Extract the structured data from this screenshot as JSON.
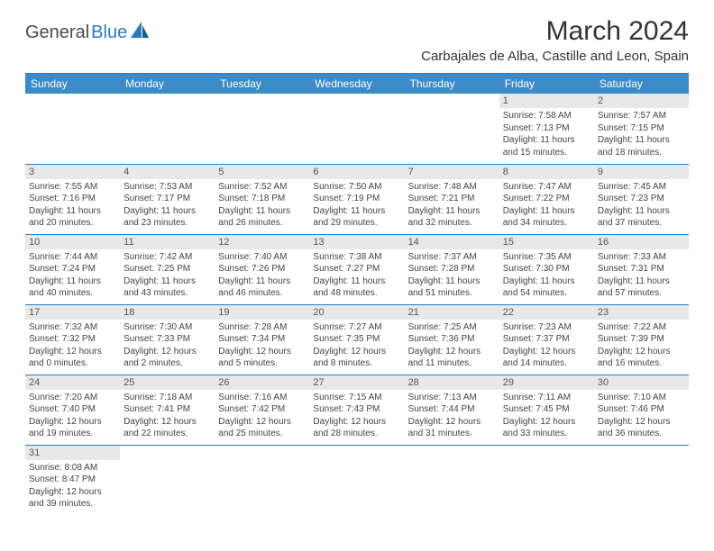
{
  "brand": {
    "general": "General",
    "blue": "Blue"
  },
  "title": "March 2024",
  "location": "Carbajales de Alba, Castille and Leon, Spain",
  "colors": {
    "header_bg": "#3b8bc9",
    "header_text": "#ffffff",
    "divider": "#2b7bbf",
    "daynum_bg": "#e8e8e8",
    "text": "#444444",
    "logo_gray": "#4a4a4a",
    "logo_blue": "#2b7bbf"
  },
  "columns": [
    "Sunday",
    "Monday",
    "Tuesday",
    "Wednesday",
    "Thursday",
    "Friday",
    "Saturday"
  ],
  "weeks": [
    [
      {
        "n": "",
        "lines": []
      },
      {
        "n": "",
        "lines": []
      },
      {
        "n": "",
        "lines": []
      },
      {
        "n": "",
        "lines": []
      },
      {
        "n": "",
        "lines": []
      },
      {
        "n": "1",
        "lines": [
          "Sunrise: 7:58 AM",
          "Sunset: 7:13 PM",
          "Daylight: 11 hours and 15 minutes."
        ]
      },
      {
        "n": "2",
        "lines": [
          "Sunrise: 7:57 AM",
          "Sunset: 7:15 PM",
          "Daylight: 11 hours and 18 minutes."
        ]
      }
    ],
    [
      {
        "n": "3",
        "lines": [
          "Sunrise: 7:55 AM",
          "Sunset: 7:16 PM",
          "Daylight: 11 hours and 20 minutes."
        ]
      },
      {
        "n": "4",
        "lines": [
          "Sunrise: 7:53 AM",
          "Sunset: 7:17 PM",
          "Daylight: 11 hours and 23 minutes."
        ]
      },
      {
        "n": "5",
        "lines": [
          "Sunrise: 7:52 AM",
          "Sunset: 7:18 PM",
          "Daylight: 11 hours and 26 minutes."
        ]
      },
      {
        "n": "6",
        "lines": [
          "Sunrise: 7:50 AM",
          "Sunset: 7:19 PM",
          "Daylight: 11 hours and 29 minutes."
        ]
      },
      {
        "n": "7",
        "lines": [
          "Sunrise: 7:48 AM",
          "Sunset: 7:21 PM",
          "Daylight: 11 hours and 32 minutes."
        ]
      },
      {
        "n": "8",
        "lines": [
          "Sunrise: 7:47 AM",
          "Sunset: 7:22 PM",
          "Daylight: 11 hours and 34 minutes."
        ]
      },
      {
        "n": "9",
        "lines": [
          "Sunrise: 7:45 AM",
          "Sunset: 7:23 PM",
          "Daylight: 11 hours and 37 minutes."
        ]
      }
    ],
    [
      {
        "n": "10",
        "lines": [
          "Sunrise: 7:44 AM",
          "Sunset: 7:24 PM",
          "Daylight: 11 hours and 40 minutes."
        ]
      },
      {
        "n": "11",
        "lines": [
          "Sunrise: 7:42 AM",
          "Sunset: 7:25 PM",
          "Daylight: 11 hours and 43 minutes."
        ]
      },
      {
        "n": "12",
        "lines": [
          "Sunrise: 7:40 AM",
          "Sunset: 7:26 PM",
          "Daylight: 11 hours and 46 minutes."
        ]
      },
      {
        "n": "13",
        "lines": [
          "Sunrise: 7:38 AM",
          "Sunset: 7:27 PM",
          "Daylight: 11 hours and 48 minutes."
        ]
      },
      {
        "n": "14",
        "lines": [
          "Sunrise: 7:37 AM",
          "Sunset: 7:28 PM",
          "Daylight: 11 hours and 51 minutes."
        ]
      },
      {
        "n": "15",
        "lines": [
          "Sunrise: 7:35 AM",
          "Sunset: 7:30 PM",
          "Daylight: 11 hours and 54 minutes."
        ]
      },
      {
        "n": "16",
        "lines": [
          "Sunrise: 7:33 AM",
          "Sunset: 7:31 PM",
          "Daylight: 11 hours and 57 minutes."
        ]
      }
    ],
    [
      {
        "n": "17",
        "lines": [
          "Sunrise: 7:32 AM",
          "Sunset: 7:32 PM",
          "Daylight: 12 hours and 0 minutes."
        ]
      },
      {
        "n": "18",
        "lines": [
          "Sunrise: 7:30 AM",
          "Sunset: 7:33 PM",
          "Daylight: 12 hours and 2 minutes."
        ]
      },
      {
        "n": "19",
        "lines": [
          "Sunrise: 7:28 AM",
          "Sunset: 7:34 PM",
          "Daylight: 12 hours and 5 minutes."
        ]
      },
      {
        "n": "20",
        "lines": [
          "Sunrise: 7:27 AM",
          "Sunset: 7:35 PM",
          "Daylight: 12 hours and 8 minutes."
        ]
      },
      {
        "n": "21",
        "lines": [
          "Sunrise: 7:25 AM",
          "Sunset: 7:36 PM",
          "Daylight: 12 hours and 11 minutes."
        ]
      },
      {
        "n": "22",
        "lines": [
          "Sunrise: 7:23 AM",
          "Sunset: 7:37 PM",
          "Daylight: 12 hours and 14 minutes."
        ]
      },
      {
        "n": "23",
        "lines": [
          "Sunrise: 7:22 AM",
          "Sunset: 7:39 PM",
          "Daylight: 12 hours and 16 minutes."
        ]
      }
    ],
    [
      {
        "n": "24",
        "lines": [
          "Sunrise: 7:20 AM",
          "Sunset: 7:40 PM",
          "Daylight: 12 hours and 19 minutes."
        ]
      },
      {
        "n": "25",
        "lines": [
          "Sunrise: 7:18 AM",
          "Sunset: 7:41 PM",
          "Daylight: 12 hours and 22 minutes."
        ]
      },
      {
        "n": "26",
        "lines": [
          "Sunrise: 7:16 AM",
          "Sunset: 7:42 PM",
          "Daylight: 12 hours and 25 minutes."
        ]
      },
      {
        "n": "27",
        "lines": [
          "Sunrise: 7:15 AM",
          "Sunset: 7:43 PM",
          "Daylight: 12 hours and 28 minutes."
        ]
      },
      {
        "n": "28",
        "lines": [
          "Sunrise: 7:13 AM",
          "Sunset: 7:44 PM",
          "Daylight: 12 hours and 31 minutes."
        ]
      },
      {
        "n": "29",
        "lines": [
          "Sunrise: 7:11 AM",
          "Sunset: 7:45 PM",
          "Daylight: 12 hours and 33 minutes."
        ]
      },
      {
        "n": "30",
        "lines": [
          "Sunrise: 7:10 AM",
          "Sunset: 7:46 PM",
          "Daylight: 12 hours and 36 minutes."
        ]
      }
    ],
    [
      {
        "n": "31",
        "lines": [
          "Sunrise: 8:08 AM",
          "Sunset: 8:47 PM",
          "Daylight: 12 hours and 39 minutes."
        ]
      },
      {
        "n": "",
        "lines": []
      },
      {
        "n": "",
        "lines": []
      },
      {
        "n": "",
        "lines": []
      },
      {
        "n": "",
        "lines": []
      },
      {
        "n": "",
        "lines": []
      },
      {
        "n": "",
        "lines": []
      }
    ]
  ]
}
